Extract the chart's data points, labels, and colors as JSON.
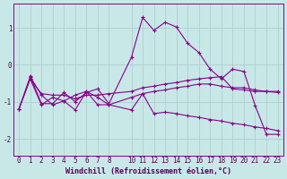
{
  "background_color": "#c8e8e8",
  "grid_color": "#b0d0d0",
  "line_color": "#880088",
  "marker": "+",
  "xlabel": "Windchill (Refroidissement éolien,°C)",
  "xlim": [
    -0.5,
    23.5
  ],
  "ylim": [
    -2.45,
    1.65
  ],
  "yticks": [
    -2,
    -1,
    0,
    1
  ],
  "xticks": [
    0,
    1,
    2,
    3,
    4,
    5,
    6,
    7,
    8,
    10,
    11,
    12,
    13,
    14,
    15,
    16,
    17,
    18,
    19,
    20,
    21,
    22,
    23
  ],
  "series": [
    [
      [
        1,
        -0.3
      ],
      [
        2,
        -1.05
      ],
      [
        3,
        -1.05
      ],
      [
        4,
        -0.75
      ],
      [
        5,
        -1.0
      ],
      [
        6,
        -0.75
      ],
      [
        7,
        -0.65
      ],
      [
        8,
        -1.05
      ],
      [
        10,
        0.2
      ],
      [
        11,
        1.28
      ],
      [
        12,
        0.93
      ],
      [
        13,
        1.15
      ],
      [
        14,
        1.02
      ],
      [
        15,
        0.58
      ],
      [
        16,
        0.33
      ],
      [
        17,
        -0.12
      ],
      [
        18,
        -0.38
      ],
      [
        19,
        -0.12
      ],
      [
        20,
        -0.18
      ],
      [
        21,
        -1.1
      ],
      [
        22,
        -1.88
      ],
      [
        23,
        -1.88
      ]
    ],
    [
      [
        0,
        -1.2
      ],
      [
        1,
        -0.38
      ],
      [
        2,
        -0.78
      ],
      [
        3,
        -0.82
      ],
      [
        4,
        -0.82
      ],
      [
        5,
        -0.92
      ],
      [
        6,
        -0.82
      ],
      [
        7,
        -0.82
      ],
      [
        8,
        -0.78
      ],
      [
        10,
        -0.72
      ],
      [
        11,
        -0.62
      ],
      [
        12,
        -0.58
      ],
      [
        13,
        -0.52
      ],
      [
        14,
        -0.48
      ],
      [
        15,
        -0.42
      ],
      [
        16,
        -0.38
      ],
      [
        17,
        -0.35
      ],
      [
        18,
        -0.32
      ],
      [
        19,
        -0.65
      ],
      [
        20,
        -0.68
      ],
      [
        21,
        -0.72
      ],
      [
        22,
        -0.72
      ],
      [
        23,
        -0.72
      ]
    ],
    [
      [
        0,
        -1.2
      ],
      [
        1,
        -0.38
      ],
      [
        2,
        -1.08
      ],
      [
        3,
        -0.88
      ],
      [
        4,
        -0.98
      ],
      [
        5,
        -0.82
      ],
      [
        6,
        -0.72
      ],
      [
        7,
        -0.88
      ],
      [
        8,
        -1.08
      ],
      [
        10,
        -0.88
      ],
      [
        11,
        -0.78
      ],
      [
        12,
        -0.72
      ],
      [
        13,
        -0.68
      ],
      [
        14,
        -0.62
      ],
      [
        15,
        -0.58
      ],
      [
        16,
        -0.52
      ],
      [
        17,
        -0.52
      ],
      [
        18,
        -0.58
      ],
      [
        19,
        -0.62
      ],
      [
        20,
        -0.62
      ],
      [
        21,
        -0.68
      ],
      [
        22,
        -0.72
      ],
      [
        23,
        -0.75
      ]
    ],
    [
      [
        0,
        -1.2
      ],
      [
        1,
        -0.32
      ],
      [
        2,
        -0.82
      ],
      [
        3,
        -1.08
      ],
      [
        4,
        -0.98
      ],
      [
        5,
        -1.22
      ],
      [
        6,
        -0.72
      ],
      [
        7,
        -1.08
      ],
      [
        8,
        -1.08
      ],
      [
        10,
        -1.22
      ],
      [
        11,
        -0.78
      ],
      [
        12,
        -1.32
      ],
      [
        13,
        -1.28
      ],
      [
        14,
        -1.32
      ],
      [
        15,
        -1.38
      ],
      [
        16,
        -1.42
      ],
      [
        17,
        -1.48
      ],
      [
        18,
        -1.52
      ],
      [
        19,
        -1.58
      ],
      [
        20,
        -1.62
      ],
      [
        21,
        -1.68
      ],
      [
        22,
        -1.72
      ],
      [
        23,
        -1.78
      ]
    ]
  ],
  "tick_fontsize": 5.5,
  "xlabel_fontsize": 6.0,
  "spine_color": "#880088",
  "tick_color": "#550055"
}
